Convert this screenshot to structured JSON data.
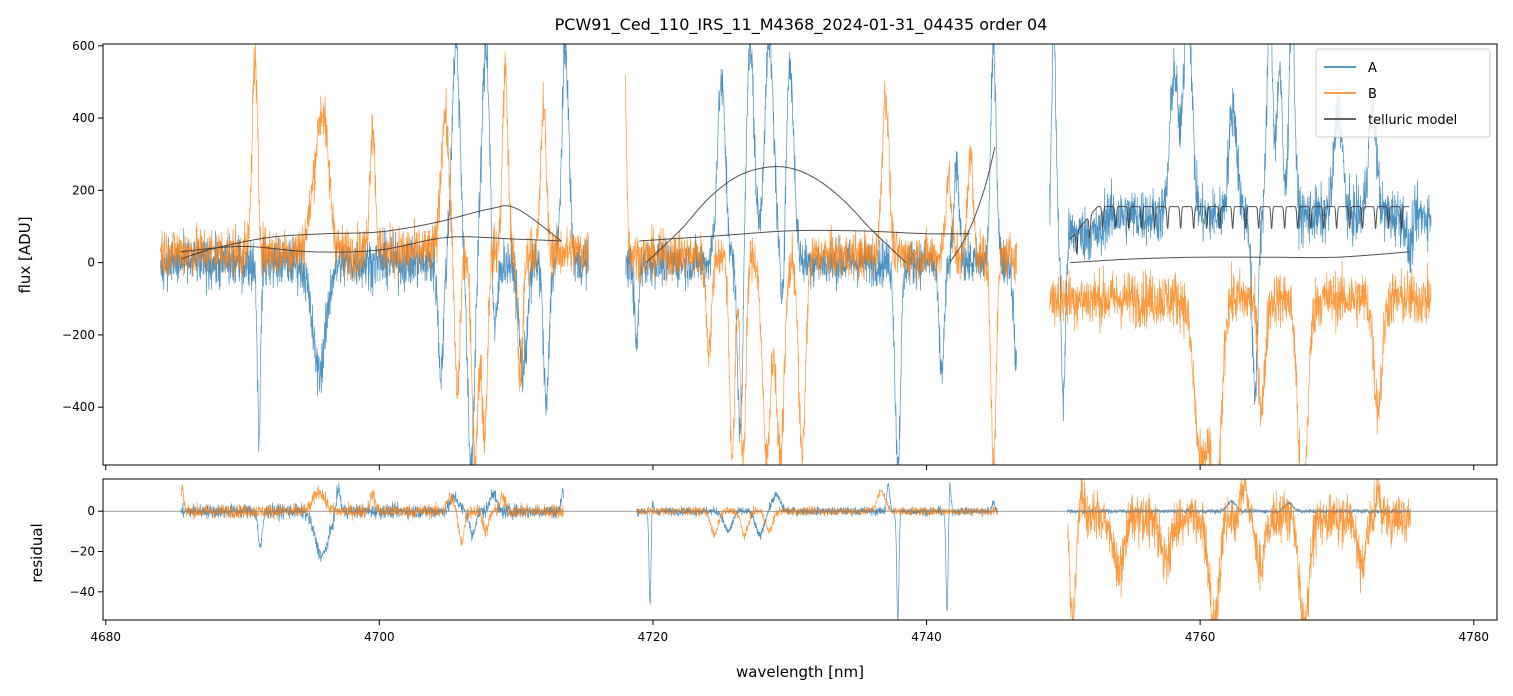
{
  "chart_data": [
    {
      "type": "line",
      "panel": "main",
      "title": "PCW91_Ced_110_IRS_11_M4368_2024-01-31_04435  order 04",
      "xlabel": "",
      "ylabel": "flux [ADU]",
      "xlim": [
        4679.8,
        4781.7
      ],
      "ylim": [
        -560,
        605
      ],
      "yticks": [
        -400,
        -200,
        0,
        200,
        400,
        600
      ],
      "ytick_labels": [
        "−400",
        "−200",
        "0",
        "200",
        "400",
        "600"
      ],
      "xticks": [
        4680,
        4700,
        4720,
        4740,
        4760,
        4780
      ],
      "legend": {
        "placement": "top-right",
        "entries": [
          {
            "label": "A",
            "color": "#1f77b4"
          },
          {
            "label": "B",
            "color": "#ff7f0e"
          },
          {
            "label": "telluric model",
            "color": "#333333"
          }
        ]
      },
      "segments": [
        {
          "start": 4684.0,
          "end": 4715.3,
          "noiseA": 50,
          "noiseB": 50
        },
        {
          "start": 4718.0,
          "end": 4746.6,
          "noiseA": 45,
          "noiseB": 45
        },
        {
          "start": 4749.0,
          "end": 4776.9,
          "noiseA": 55,
          "noiseB": 55
        }
      ],
      "series": [
        {
          "name": "A",
          "color": "#1f77b4",
          "baseline": [
            {
              "range": [
                4684.0,
                4715.3
              ],
              "level": 0
            },
            {
              "range": [
                4718.0,
                4746.6
              ],
              "level": 0
            },
            {
              "range": [
                4749.0,
                4753.0
              ],
              "level": 80
            },
            {
              "range": [
                4753.0,
                4776.9
              ],
              "level": 130
            }
          ],
          "features": [
            {
              "x": 4691.2,
              "amp": -470,
              "w": 0.12
            },
            {
              "x": 4695.6,
              "amp": -300,
              "w": 0.5
            },
            {
              "x": 4704.5,
              "amp": -300,
              "w": 0.2
            },
            {
              "x": 4705.6,
              "amp": 600,
              "w": 0.3
            },
            {
              "x": 4706.7,
              "amp": -560,
              "w": 0.25
            },
            {
              "x": 4707.8,
              "amp": 600,
              "w": 0.3
            },
            {
              "x": 4708.4,
              "amp": -250,
              "w": 0.2
            },
            {
              "x": 4710.5,
              "amp": -300,
              "w": 0.3
            },
            {
              "x": 4712.2,
              "amp": -400,
              "w": 0.2
            },
            {
              "x": 4713.6,
              "amp": 600,
              "w": 0.25
            },
            {
              "x": 4718.8,
              "amp": -230,
              "w": 0.15
            },
            {
              "x": 4725.0,
              "amp": 500,
              "w": 0.3
            },
            {
              "x": 4726.4,
              "amp": -500,
              "w": 0.2
            },
            {
              "x": 4727.1,
              "amp": 600,
              "w": 0.3
            },
            {
              "x": 4728.5,
              "amp": 600,
              "w": 0.35
            },
            {
              "x": 4729.5,
              "amp": -200,
              "w": 0.2
            },
            {
              "x": 4730.0,
              "amp": 550,
              "w": 0.3
            },
            {
              "x": 4737.9,
              "amp": -560,
              "w": 0.2
            },
            {
              "x": 4741.1,
              "amp": -300,
              "w": 0.2
            },
            {
              "x": 4742.2,
              "amp": 250,
              "w": 0.2
            },
            {
              "x": 4744.9,
              "amp": 600,
              "w": 0.2
            },
            {
              "x": 4746.6,
              "amp": -300,
              "w": 0.2
            },
            {
              "x": 4749.3,
              "amp": 600,
              "w": 0.15
            },
            {
              "x": 4750.0,
              "amp": -460,
              "w": 0.15
            },
            {
              "x": 4758.1,
              "amp": 400,
              "w": 0.3
            },
            {
              "x": 4759.1,
              "amp": 600,
              "w": 0.3
            },
            {
              "x": 4762.4,
              "amp": 300,
              "w": 0.3
            },
            {
              "x": 4764.0,
              "amp": -500,
              "w": 0.2
            },
            {
              "x": 4765.1,
              "amp": 600,
              "w": 0.2
            },
            {
              "x": 4765.8,
              "amp": 400,
              "w": 0.2
            },
            {
              "x": 4766.7,
              "amp": 600,
              "w": 0.2
            },
            {
              "x": 4770.1,
              "amp": 300,
              "w": 0.3
            },
            {
              "x": 4772.6,
              "amp": 300,
              "w": 0.3
            },
            {
              "x": 4775.3,
              "amp": -100,
              "w": 0.2
            }
          ]
        },
        {
          "name": "B",
          "color": "#ff7f0e",
          "baseline": [
            {
              "range": [
                4684.0,
                4715.3
              ],
              "level": 30
            },
            {
              "range": [
                4718.0,
                4746.6
              ],
              "level": 20
            },
            {
              "range": [
                4749.0,
                4776.9
              ],
              "level": -100
            }
          ],
          "features": [
            {
              "x": 4690.9,
              "amp": 530,
              "w": 0.2
            },
            {
              "x": 4695.5,
              "amp": 220,
              "w": 0.5
            },
            {
              "x": 4696.0,
              "amp": 230,
              "w": 0.4
            },
            {
              "x": 4699.5,
              "amp": 350,
              "w": 0.2
            },
            {
              "x": 4704.8,
              "amp": 380,
              "w": 0.3
            },
            {
              "x": 4705.7,
              "amp": -400,
              "w": 0.2
            },
            {
              "x": 4707.0,
              "amp": -560,
              "w": 0.25
            },
            {
              "x": 4707.7,
              "amp": -500,
              "w": 0.2
            },
            {
              "x": 4709.2,
              "amp": 500,
              "w": 0.2
            },
            {
              "x": 4710.3,
              "amp": -350,
              "w": 0.2
            },
            {
              "x": 4712.0,
              "amp": 400,
              "w": 0.2
            },
            {
              "x": 4717.9,
              "amp": 600,
              "w": 0.15
            },
            {
              "x": 4724.1,
              "amp": -260,
              "w": 0.2
            },
            {
              "x": 4725.8,
              "amp": -560,
              "w": 0.2
            },
            {
              "x": 4726.6,
              "amp": -560,
              "w": 0.2
            },
            {
              "x": 4728.3,
              "amp": -560,
              "w": 0.3
            },
            {
              "x": 4729.3,
              "amp": -560,
              "w": 0.3
            },
            {
              "x": 4730.9,
              "amp": -560,
              "w": 0.25
            },
            {
              "x": 4737.0,
              "amp": 450,
              "w": 0.25
            },
            {
              "x": 4741.6,
              "amp": 220,
              "w": 0.2
            },
            {
              "x": 4743.2,
              "amp": 280,
              "w": 0.2
            },
            {
              "x": 4744.9,
              "amp": -560,
              "w": 0.2
            },
            {
              "x": 4760.1,
              "amp": -460,
              "w": 0.5
            },
            {
              "x": 4761.2,
              "amp": -560,
              "w": 0.35
            },
            {
              "x": 4764.5,
              "amp": -300,
              "w": 0.25
            },
            {
              "x": 4767.5,
              "amp": -560,
              "w": 0.35
            },
            {
              "x": 4773.0,
              "amp": -300,
              "w": 0.3
            }
          ]
        },
        {
          "name": "telluric model",
          "color": "#333333",
          "curves": [
            {
              "x": [
                4685.5,
                4688,
                4692,
                4696,
                4700,
                4704,
                4708,
                4710,
                4713.3
              ],
              "y": [
                10,
                40,
                70,
                80,
                85,
                110,
                148,
                150,
                60
              ]
            },
            {
              "x": [
                4685.5,
                4690,
                4695,
                4700,
                4705,
                4710,
                4713.3
              ],
              "y": [
                30,
                45,
                30,
                35,
                70,
                65,
                60
              ]
            },
            {
              "x": [
                4719.5,
                4722,
                4724,
                4726,
                4728,
                4730,
                4732,
                4734,
                4736,
                4738.5
              ],
              "y": [
                0,
                90,
                175,
                235,
                262,
                262,
                230,
                170,
                90,
                0
              ]
            },
            {
              "x": [
                4719.0,
                4725,
                4730,
                4735,
                4740,
                4743.2
              ],
              "y": [
                60,
                75,
                88,
                88,
                80,
                80
              ]
            },
            {
              "x": [
                4741.7,
                4743.0,
                4744.2,
                4745.0
              ],
              "y": [
                0,
                80,
                200,
                320
              ]
            },
            {
              "x": [
                4750.5,
                4755,
                4760,
                4765,
                4770,
                4775.3
              ],
              "y": [
                0,
                10,
                15,
                15,
                15,
                30
              ]
            }
          ],
          "comb": {
            "start": 4750.5,
            "end": 4775.3,
            "level": 155,
            "first": 65,
            "period": 0.95,
            "dip_depth": 60
          }
        }
      ]
    },
    {
      "type": "line",
      "panel": "residual",
      "xlabel": "wavelength [nm]",
      "ylabel": "residual",
      "xlim": [
        4679.8,
        4781.7
      ],
      "ylim": [
        -54,
        16
      ],
      "yticks": [
        -40,
        -20,
        0
      ],
      "ytick_labels": [
        "−40",
        "−20",
        "0"
      ],
      "xticks": [
        4680,
        4700,
        4720,
        4740,
        4760,
        4780
      ],
      "xtick_labels": [
        "4680",
        "4700",
        "4720",
        "4740",
        "4760",
        "4780"
      ],
      "segments": [
        {
          "start": 4685.5,
          "end": 4713.5,
          "noiseA": 2.5,
          "noiseB": 2.5
        },
        {
          "start": 4718.8,
          "end": 4745.2,
          "noiseA": 1.5,
          "noiseB": 1.5
        },
        {
          "start": 4750.3,
          "end": 4775.4,
          "noiseA": 0.8,
          "noiseB": 8
        }
      ],
      "series": [
        {
          "name": "A",
          "color": "#1f77b4",
          "features": [
            {
              "x": 4691.3,
              "amp": -18,
              "w": 0.15
            },
            {
              "x": 4695.8,
              "amp": -22,
              "w": 0.5
            },
            {
              "x": 4697.0,
              "amp": 12,
              "w": 0.15
            },
            {
              "x": 4705.5,
              "amp": 7,
              "w": 0.3
            },
            {
              "x": 4706.8,
              "amp": -12,
              "w": 0.2
            },
            {
              "x": 4708.3,
              "amp": 10,
              "w": 0.2
            },
            {
              "x": 4713.4,
              "amp": 10,
              "w": 0.1
            },
            {
              "x": 4719.8,
              "amp": -52,
              "w": 0.08
            },
            {
              "x": 4719.9,
              "amp": 14,
              "w": 0.08
            },
            {
              "x": 4725.5,
              "amp": -10,
              "w": 0.3
            },
            {
              "x": 4727.8,
              "amp": -12,
              "w": 0.3
            },
            {
              "x": 4729.0,
              "amp": 8,
              "w": 0.3
            },
            {
              "x": 4737.2,
              "amp": 14,
              "w": 0.1
            },
            {
              "x": 4737.9,
              "amp": -54,
              "w": 0.08
            },
            {
              "x": 4741.5,
              "amp": -50,
              "w": 0.08
            },
            {
              "x": 4741.7,
              "amp": 14,
              "w": 0.08
            },
            {
              "x": 4744.9,
              "amp": 5,
              "w": 0.1
            },
            {
              "x": 4762.3,
              "amp": 5,
              "w": 0.3
            },
            {
              "x": 4766.5,
              "amp": 4,
              "w": 0.3
            }
          ]
        },
        {
          "name": "B",
          "color": "#ff7f0e",
          "features": [
            {
              "x": 4685.6,
              "amp": 12,
              "w": 0.1
            },
            {
              "x": 4695.6,
              "amp": 10,
              "w": 0.4
            },
            {
              "x": 4699.5,
              "amp": 8,
              "w": 0.2
            },
            {
              "x": 4705.2,
              "amp": 7,
              "w": 0.25
            },
            {
              "x": 4706.0,
              "amp": -15,
              "w": 0.2
            },
            {
              "x": 4707.8,
              "amp": -10,
              "w": 0.2
            },
            {
              "x": 4709.0,
              "amp": 7,
              "w": 0.2
            },
            {
              "x": 4724.5,
              "amp": -12,
              "w": 0.25
            },
            {
              "x": 4726.7,
              "amp": -12,
              "w": 0.25
            },
            {
              "x": 4728.5,
              "amp": -10,
              "w": 0.25
            },
            {
              "x": 4736.7,
              "amp": 10,
              "w": 0.3
            },
            {
              "x": 4750.7,
              "amp": -54,
              "w": 0.2
            },
            {
              "x": 4751.3,
              "amp": 16,
              "w": 0.2
            },
            {
              "x": 4754.0,
              "amp": -25,
              "w": 0.4
            },
            {
              "x": 4757.5,
              "amp": -20,
              "w": 0.4
            },
            {
              "x": 4761.0,
              "amp": -54,
              "w": 0.35
            },
            {
              "x": 4763.2,
              "amp": 16,
              "w": 0.25
            },
            {
              "x": 4764.4,
              "amp": -25,
              "w": 0.3
            },
            {
              "x": 4767.6,
              "amp": -54,
              "w": 0.35
            },
            {
              "x": 4773.0,
              "amp": 16,
              "w": 0.15
            },
            {
              "x": 4771.8,
              "amp": -25,
              "w": 0.3
            }
          ]
        },
        {
          "name": "zero line",
          "color": "#808080",
          "y": 0
        }
      ]
    }
  ]
}
